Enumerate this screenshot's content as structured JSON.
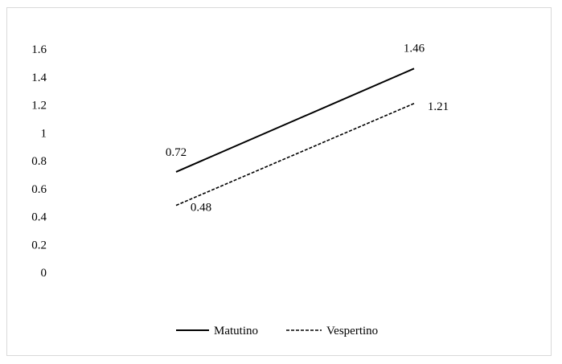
{
  "chart_data": {
    "type": "line",
    "categories": [
      "",
      ""
    ],
    "ylim": [
      0,
      1.6
    ],
    "yticks": [
      "0",
      "0.2",
      "0.4",
      "0.6",
      "0.8",
      "1",
      "1.2",
      "1.4",
      "1.6"
    ],
    "grid": false,
    "legend_position": "bottom",
    "series": [
      {
        "name": "Matutino",
        "values": [
          0.72,
          1.46
        ],
        "labels": [
          "0.72",
          "1.46"
        ],
        "color": "#000000",
        "dash": "solid"
      },
      {
        "name": "Vespertino",
        "values": [
          0.48,
          1.21
        ],
        "labels": [
          "0.48",
          "1.21"
        ],
        "color": "#000000",
        "dash": "dashed"
      }
    ]
  }
}
